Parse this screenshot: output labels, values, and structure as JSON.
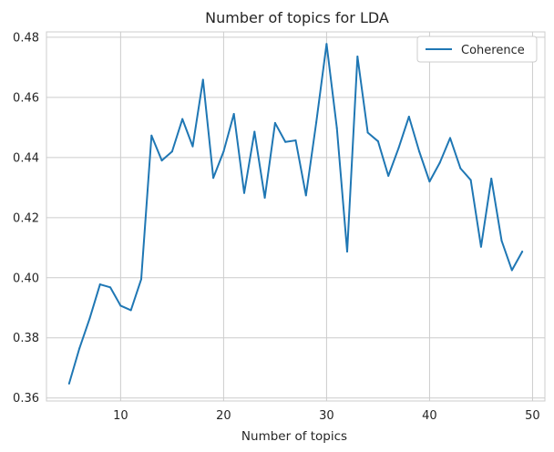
{
  "chart_data": {
    "type": "line",
    "title": "Number of topics for LDA",
    "xlabel": "Number of topics",
    "ylabel": "",
    "xlim": [
      2.8,
      51.2
    ],
    "ylim": [
      0.359,
      0.4818
    ],
    "xticks": [
      10,
      20,
      30,
      40,
      50
    ],
    "yticks": [
      0.36,
      0.38,
      0.4,
      0.42,
      0.44,
      0.46,
      0.48
    ],
    "grid": true,
    "legend": "top-right",
    "series": [
      {
        "name": "Coherence",
        "color": "#1f77b4",
        "x": [
          5,
          6,
          7,
          8,
          9,
          10,
          11,
          12,
          13,
          14,
          15,
          16,
          17,
          18,
          19,
          20,
          21,
          22,
          23,
          24,
          25,
          26,
          27,
          28,
          29,
          30,
          31,
          32,
          33,
          34,
          35,
          36,
          37,
          38,
          39,
          40,
          41,
          42,
          43,
          44,
          45,
          46,
          47,
          48,
          49
        ],
        "y": [
          0.3648,
          0.3765,
          0.3865,
          0.3978,
          0.3968,
          0.3907,
          0.3892,
          0.3995,
          0.4473,
          0.439,
          0.442,
          0.4528,
          0.4437,
          0.4659,
          0.4332,
          0.442,
          0.4545,
          0.4282,
          0.4486,
          0.4266,
          0.4515,
          0.4452,
          0.4457,
          0.4274,
          0.4517,
          0.4778,
          0.4498,
          0.4087,
          0.4736,
          0.4483,
          0.4454,
          0.4339,
          0.4432,
          0.4536,
          0.442,
          0.432,
          0.4383,
          0.4465,
          0.4364,
          0.4325,
          0.4103,
          0.433,
          0.4123,
          0.4025,
          0.4087
        ]
      }
    ]
  }
}
